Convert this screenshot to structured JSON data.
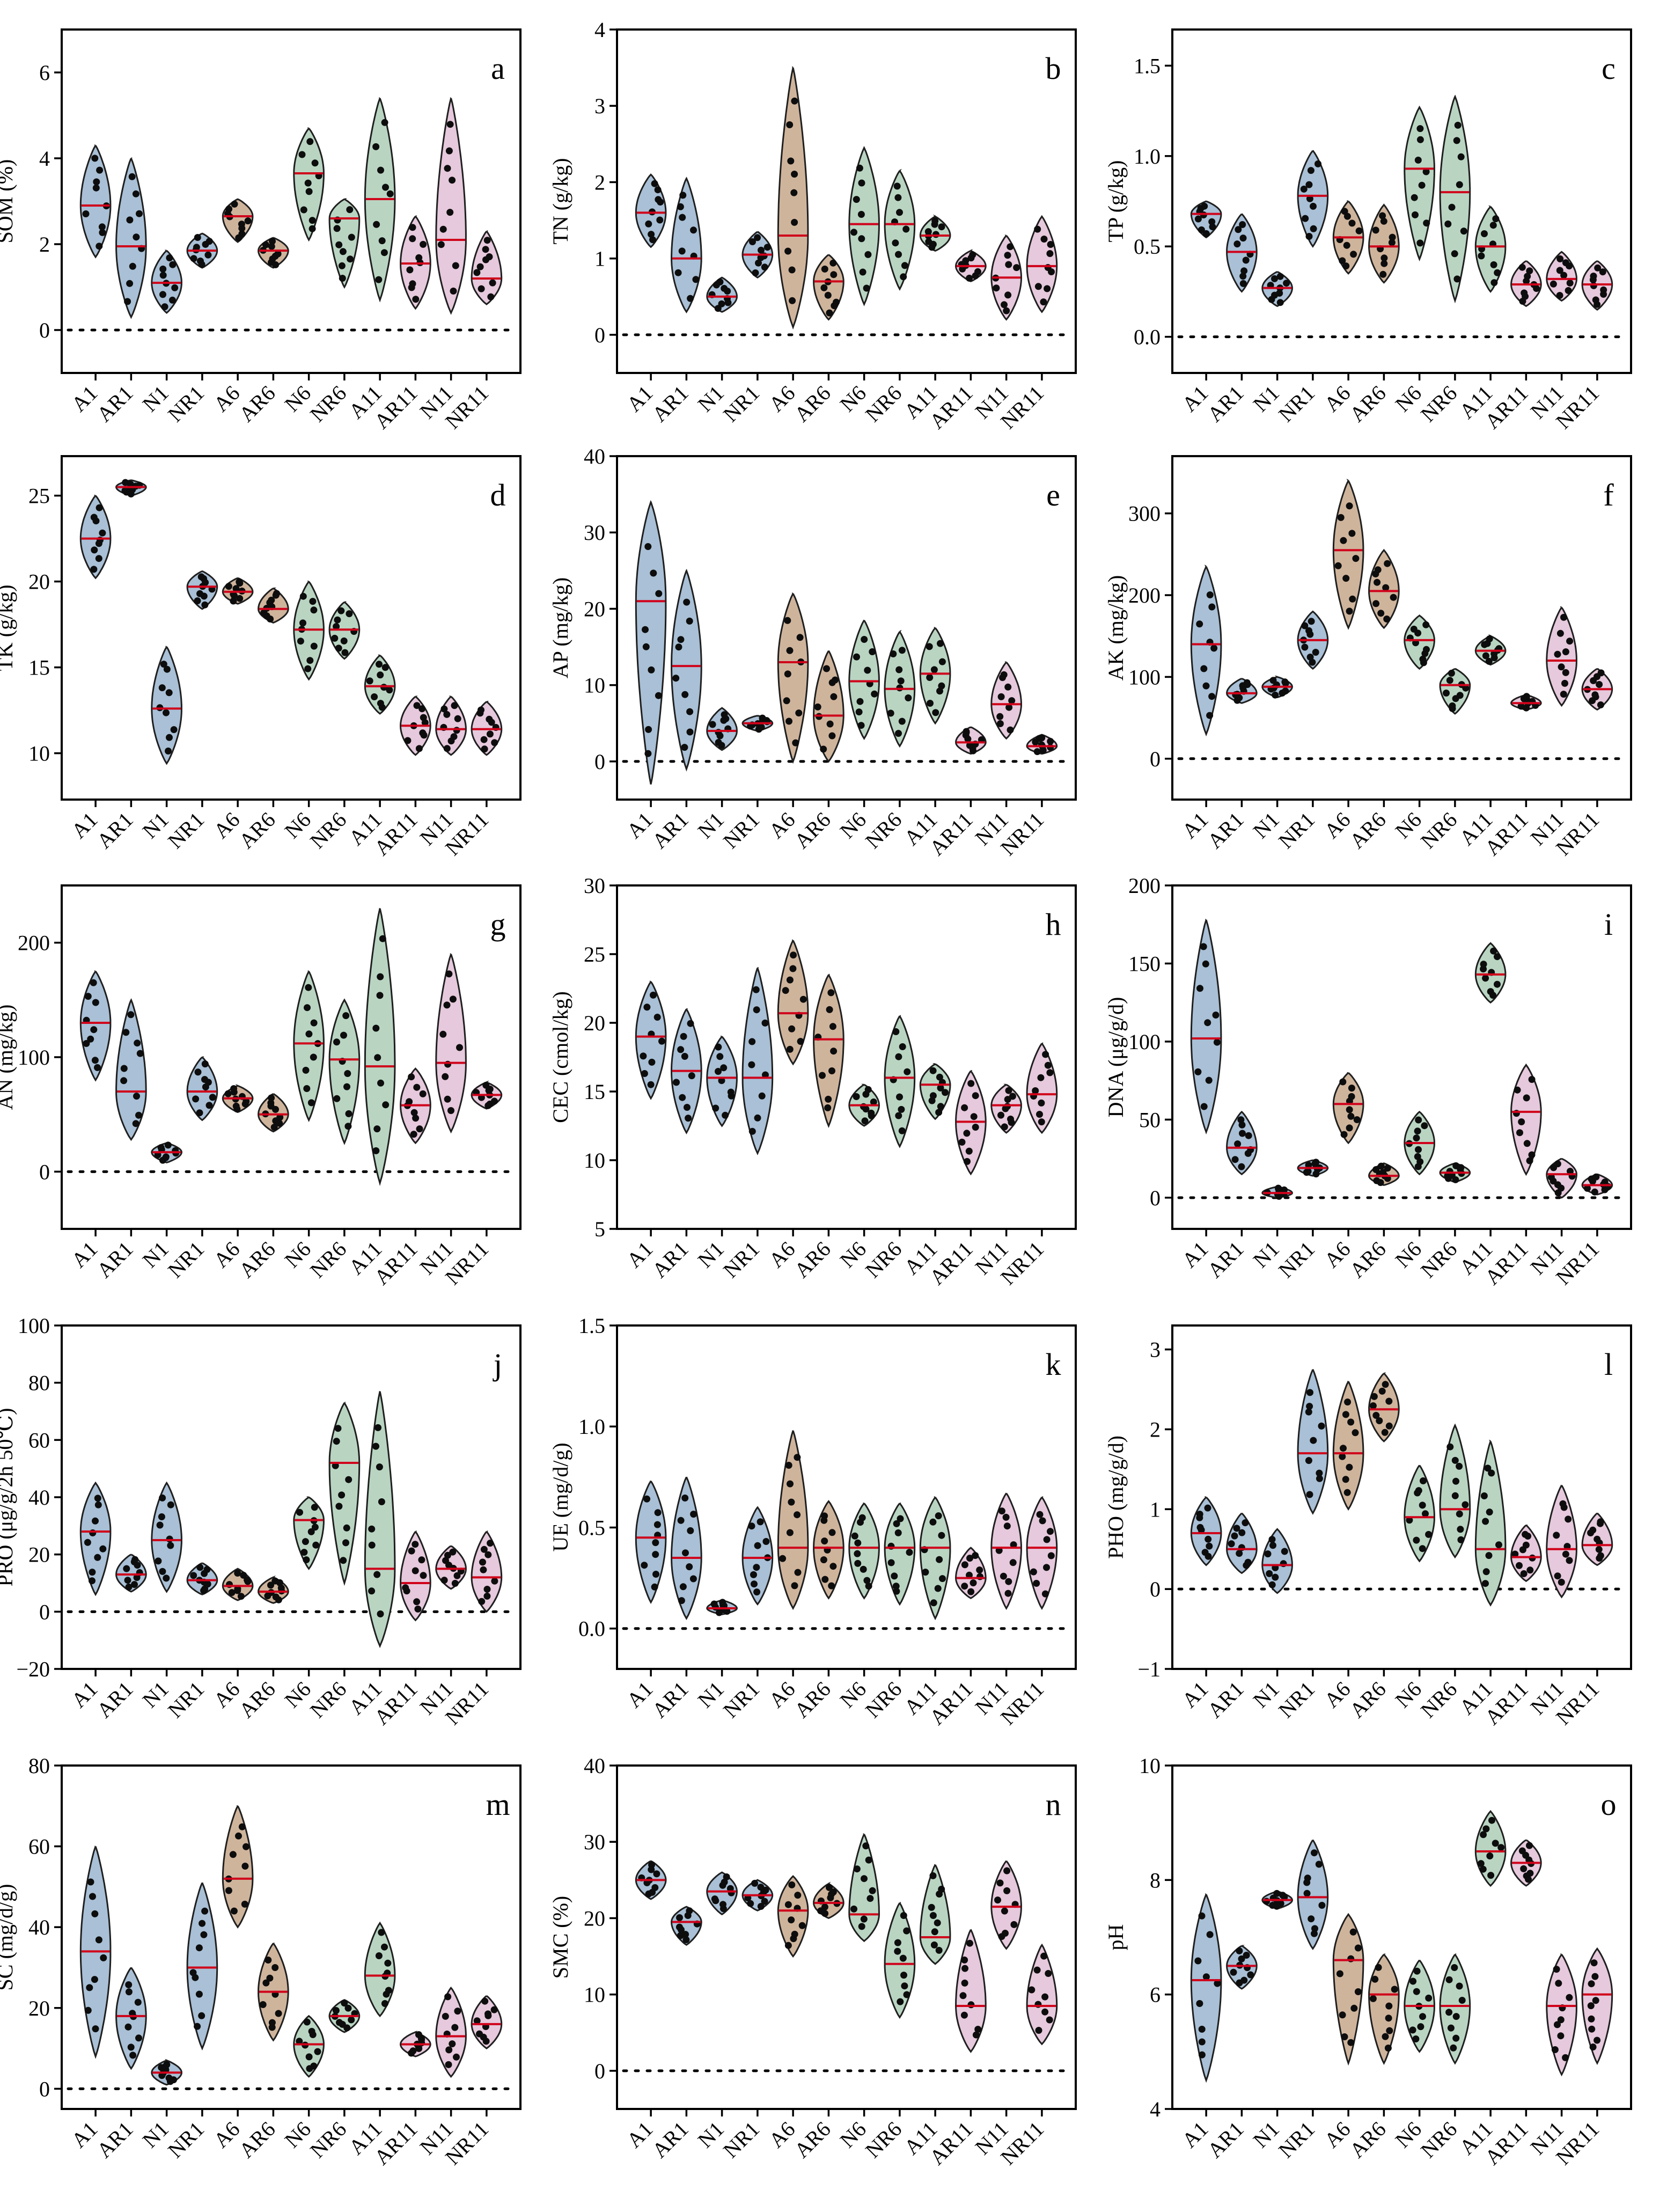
{
  "colors": {
    "A": "#a9c0d6",
    "N": "#b9d5c2",
    "X": "#cfb49c",
    "P": "#e6c9dc",
    "median": "#d0021b",
    "dot": "#0d0d0d"
  },
  "chart_data": [
    {
      "panel": "a",
      "type": "violin",
      "ylabel": "SOM (%)",
      "ylim": [
        -1,
        7
      ],
      "yticks": [
        0,
        2,
        4,
        6
      ],
      "categories": [
        "A1",
        "AR1",
        "N1",
        "NR1",
        "A6",
        "AR6",
        "N6",
        "NR6",
        "A11",
        "AR11",
        "N11",
        "NR11"
      ],
      "fill_groups": [
        "A",
        "A",
        "A",
        "A",
        "X",
        "X",
        "N",
        "N",
        "N",
        "P",
        "P",
        "P"
      ],
      "medians": [
        2.9,
        1.95,
        1.1,
        1.85,
        2.65,
        1.85,
        3.65,
        2.6,
        3.05,
        1.55,
        2.1,
        1.2
      ],
      "mins": [
        1.7,
        0.3,
        0.4,
        1.45,
        2.05,
        1.45,
        2.1,
        1.0,
        0.7,
        0.5,
        0.4,
        0.6
      ],
      "maxs": [
        4.3,
        4.0,
        1.85,
        2.25,
        3.05,
        2.15,
        4.7,
        3.05,
        5.4,
        2.65,
        5.4,
        2.3
      ]
    },
    {
      "panel": "b",
      "type": "violin",
      "ylabel": "TN (g/kg)",
      "ylim": [
        -0.5,
        4
      ],
      "yticks": [
        0,
        1,
        2,
        3,
        4
      ],
      "categories": [
        "A1",
        "AR1",
        "N1",
        "NR1",
        "A6",
        "AR6",
        "N6",
        "NR6",
        "A11",
        "AR11",
        "N11",
        "NR11"
      ],
      "fill_groups": [
        "A",
        "A",
        "A",
        "A",
        "X",
        "X",
        "N",
        "N",
        "N",
        "P",
        "P",
        "P"
      ],
      "medians": [
        1.6,
        1.0,
        0.5,
        1.05,
        1.3,
        0.7,
        1.45,
        1.45,
        1.3,
        0.9,
        0.75,
        0.9
      ],
      "mins": [
        1.15,
        0.3,
        0.3,
        0.75,
        0.1,
        0.2,
        0.4,
        0.6,
        1.1,
        0.7,
        0.2,
        0.3
      ],
      "maxs": [
        2.1,
        2.05,
        0.75,
        1.35,
        3.5,
        1.05,
        2.45,
        2.15,
        1.55,
        1.1,
        1.3,
        1.55
      ]
    },
    {
      "panel": "c",
      "type": "violin",
      "ylabel": "TP (g/kg)",
      "ylim": [
        -0.2,
        1.7
      ],
      "yticks": [
        0.0,
        0.5,
        1.0,
        1.5
      ],
      "categories": [
        "A1",
        "AR1",
        "N1",
        "NR1",
        "A6",
        "AR6",
        "N6",
        "NR6",
        "A11",
        "AR11",
        "N11",
        "NR11"
      ],
      "fill_groups": [
        "A",
        "A",
        "A",
        "A",
        "X",
        "X",
        "N",
        "N",
        "N",
        "P",
        "P",
        "P"
      ],
      "medians": [
        0.68,
        0.47,
        0.27,
        0.78,
        0.55,
        0.5,
        0.93,
        0.8,
        0.5,
        0.29,
        0.32,
        0.29
      ],
      "mins": [
        0.55,
        0.25,
        0.17,
        0.5,
        0.35,
        0.3,
        0.43,
        0.2,
        0.25,
        0.17,
        0.2,
        0.15
      ],
      "maxs": [
        0.75,
        0.68,
        0.36,
        1.03,
        0.75,
        0.73,
        1.27,
        1.33,
        0.72,
        0.42,
        0.47,
        0.42
      ]
    },
    {
      "panel": "d",
      "type": "violin",
      "ylabel": "TK (g/kg)",
      "ylim": [
        7.3,
        27.3
      ],
      "yticks": [
        10,
        15,
        20,
        25
      ],
      "categories": [
        "A1",
        "AR1",
        "N1",
        "NR1",
        "A6",
        "AR6",
        "N6",
        "NR6",
        "A11",
        "AR11",
        "N11",
        "NR11"
      ],
      "fill_groups": [
        "A",
        "A",
        "A",
        "A",
        "X",
        "X",
        "N",
        "N",
        "N",
        "P",
        "P",
        "P"
      ],
      "medians": [
        22.5,
        25.5,
        12.6,
        19.7,
        19.4,
        18.4,
        17.2,
        17.2,
        13.9,
        11.6,
        11.4,
        11.4
      ],
      "mins": [
        20.2,
        25.0,
        9.4,
        18.4,
        18.7,
        17.6,
        14.3,
        15.5,
        12.3,
        9.9,
        9.9,
        9.9
      ],
      "maxs": [
        25.0,
        25.9,
        16.2,
        20.6,
        20.2,
        19.6,
        20.0,
        18.8,
        15.7,
        13.3,
        13.3,
        13.0
      ]
    },
    {
      "panel": "e",
      "type": "violin",
      "ylabel": "AP (mg/kg)",
      "ylim": [
        -5,
        40
      ],
      "yticks": [
        0,
        10,
        20,
        30,
        40
      ],
      "categories": [
        "A1",
        "AR1",
        "N1",
        "NR1",
        "A6",
        "AR6",
        "N6",
        "NR6",
        "A11",
        "AR11",
        "N11",
        "NR11"
      ],
      "fill_groups": [
        "A",
        "A",
        "A",
        "A",
        "X",
        "X",
        "N",
        "N",
        "N",
        "P",
        "P",
        "P"
      ],
      "medians": [
        21.0,
        12.5,
        4.0,
        5.0,
        13.0,
        6.0,
        10.5,
        9.5,
        11.5,
        2.5,
        7.5,
        2.0
      ],
      "mins": [
        -3.0,
        -1.0,
        1.5,
        4.0,
        0.0,
        0.0,
        3.0,
        2.0,
        5.0,
        1.0,
        3.0,
        1.0
      ],
      "maxs": [
        34.0,
        25.0,
        7.0,
        6.0,
        22.0,
        14.5,
        18.5,
        17.0,
        17.5,
        4.5,
        13.0,
        3.5
      ]
    },
    {
      "panel": "f",
      "type": "violin",
      "ylabel": "AK (mg/kg)",
      "ylim": [
        -50,
        370
      ],
      "yticks": [
        0,
        100,
        200,
        300
      ],
      "categories": [
        "A1",
        "AR1",
        "N1",
        "NR1",
        "A6",
        "AR6",
        "N6",
        "NR6",
        "A11",
        "AR11",
        "N11",
        "NR11"
      ],
      "fill_groups": [
        "A",
        "A",
        "A",
        "A",
        "X",
        "X",
        "N",
        "N",
        "N",
        "P",
        "P",
        "P"
      ],
      "medians": [
        140,
        80,
        88,
        145,
        255,
        205,
        145,
        90,
        132,
        68,
        120,
        85
      ],
      "mins": [
        30,
        68,
        75,
        110,
        160,
        160,
        110,
        55,
        115,
        60,
        65,
        60
      ],
      "maxs": [
        235,
        98,
        100,
        180,
        340,
        255,
        175,
        110,
        150,
        78,
        185,
        110
      ]
    },
    {
      "panel": "g",
      "type": "violin",
      "ylabel": "AN (mg/kg)",
      "ylim": [
        -50,
        250
      ],
      "yticks": [
        0,
        100,
        200
      ],
      "categories": [
        "A1",
        "AR1",
        "N1",
        "NR1",
        "A6",
        "AR6",
        "N6",
        "NR6",
        "A11",
        "AR11",
        "N11",
        "NR11"
      ],
      "fill_groups": [
        "A",
        "A",
        "A",
        "A",
        "X",
        "X",
        "N",
        "N",
        "N",
        "P",
        "P",
        "P"
      ],
      "medians": [
        130,
        70,
        17,
        70,
        64,
        50,
        112,
        98,
        92,
        58,
        95,
        67
      ],
      "mins": [
        80,
        28,
        8,
        45,
        52,
        35,
        45,
        25,
        -10,
        25,
        35,
        55
      ],
      "maxs": [
        175,
        150,
        25,
        100,
        75,
        68,
        175,
        150,
        230,
        90,
        190,
        78
      ]
    },
    {
      "panel": "h",
      "type": "violin",
      "ylabel": "CEC (cmol/kg)",
      "ylim": [
        5,
        30
      ],
      "yticks": [
        5,
        10,
        15,
        20,
        25,
        30
      ],
      "categories": [
        "A1",
        "AR1",
        "N1",
        "NR1",
        "A6",
        "AR6",
        "N6",
        "NR6",
        "A11",
        "AR11",
        "N11",
        "NR11"
      ],
      "fill_groups": [
        "A",
        "A",
        "A",
        "A",
        "X",
        "X",
        "N",
        "N",
        "N",
        "P",
        "P",
        "P"
      ],
      "medians": [
        19.0,
        16.5,
        16.0,
        16.0,
        20.7,
        18.8,
        14.0,
        16.0,
        15.5,
        12.8,
        14.0,
        14.8
      ],
      "mins": [
        14.5,
        12.0,
        12.5,
        10.5,
        17.0,
        12.5,
        12.5,
        11.0,
        13.0,
        9.0,
        12.0,
        12.0
      ],
      "maxs": [
        23.0,
        21.0,
        19.0,
        24.0,
        26.0,
        23.5,
        15.5,
        20.5,
        17.0,
        16.5,
        15.5,
        18.5
      ]
    },
    {
      "panel": "i",
      "type": "violin",
      "ylabel": "DNA (μg/g/d)",
      "ylim": [
        -20,
        200
      ],
      "yticks": [
        0,
        50,
        100,
        150,
        200
      ],
      "categories": [
        "A1",
        "AR1",
        "N1",
        "NR1",
        "A6",
        "AR6",
        "N6",
        "NR6",
        "A11",
        "AR11",
        "N11",
        "NR11"
      ],
      "fill_groups": [
        "A",
        "A",
        "A",
        "A",
        "X",
        "X",
        "N",
        "N",
        "N",
        "P",
        "P",
        "P"
      ],
      "medians": [
        102,
        32,
        3,
        19,
        60,
        14,
        35,
        16,
        143,
        55,
        15,
        8
      ],
      "mins": [
        42,
        15,
        0,
        14,
        35,
        8,
        15,
        10,
        125,
        15,
        0,
        2
      ],
      "maxs": [
        178,
        55,
        7,
        24,
        80,
        22,
        55,
        22,
        163,
        85,
        25,
        15
      ]
    },
    {
      "panel": "j",
      "type": "violin",
      "ylabel": "PRO (μg/g/2h 50℃)",
      "ylim": [
        -20,
        100
      ],
      "yticks": [
        -20,
        0,
        20,
        40,
        60,
        80,
        100
      ],
      "categories": [
        "A1",
        "AR1",
        "N1",
        "NR1",
        "A6",
        "AR6",
        "N6",
        "NR6",
        "A11",
        "AR11",
        "N11",
        "NR11"
      ],
      "fill_groups": [
        "A",
        "A",
        "A",
        "A",
        "X",
        "X",
        "N",
        "N",
        "N",
        "P",
        "P",
        "P"
      ],
      "medians": [
        28,
        13,
        25,
        11,
        9,
        7,
        32,
        52,
        15,
        10,
        15,
        12
      ],
      "mins": [
        6,
        7,
        7,
        6,
        4,
        3,
        15,
        10,
        -12,
        -3,
        8,
        0
      ],
      "maxs": [
        45,
        20,
        45,
        17,
        15,
        12,
        40,
        73,
        77,
        28,
        23,
        28
      ]
    },
    {
      "panel": "k",
      "type": "violin",
      "ylabel": "UE (mg/d/g)",
      "ylim": [
        -0.2,
        1.5
      ],
      "yticks": [
        0.0,
        0.5,
        1.0,
        1.5
      ],
      "categories": [
        "A1",
        "AR1",
        "N1",
        "NR1",
        "A6",
        "AR6",
        "N6",
        "NR6",
        "A11",
        "AR11",
        "N11",
        "NR11"
      ],
      "fill_groups": [
        "A",
        "A",
        "A",
        "A",
        "X",
        "X",
        "N",
        "N",
        "N",
        "P",
        "P",
        "P"
      ],
      "medians": [
        0.45,
        0.35,
        0.1,
        0.35,
        0.4,
        0.4,
        0.4,
        0.4,
        0.4,
        0.25,
        0.4,
        0.4
      ],
      "mins": [
        0.13,
        0.05,
        0.07,
        0.12,
        0.1,
        0.15,
        0.15,
        0.12,
        0.05,
        0.15,
        0.1,
        0.1
      ],
      "maxs": [
        0.73,
        0.75,
        0.14,
        0.6,
        0.98,
        0.63,
        0.62,
        0.62,
        0.65,
        0.4,
        0.67,
        0.65
      ]
    },
    {
      "panel": "l",
      "type": "violin",
      "ylabel": "PHO (mg/g/d)",
      "ylim": [
        -1,
        3.3
      ],
      "yticks": [
        -1,
        0,
        1,
        2,
        3
      ],
      "categories": [
        "A1",
        "AR1",
        "N1",
        "NR1",
        "A6",
        "AR6",
        "N6",
        "NR6",
        "A11",
        "AR11",
        "N11",
        "NR11"
      ],
      "fill_groups": [
        "A",
        "A",
        "A",
        "A",
        "X",
        "X",
        "N",
        "N",
        "N",
        "P",
        "P",
        "P"
      ],
      "medians": [
        0.7,
        0.5,
        0.3,
        1.7,
        1.7,
        2.25,
        0.9,
        1.0,
        0.5,
        0.4,
        0.5,
        0.55
      ],
      "mins": [
        0.3,
        0.2,
        -0.05,
        0.95,
        1.0,
        1.85,
        0.35,
        0.4,
        -0.2,
        0.1,
        -0.1,
        0.3
      ],
      "maxs": [
        1.15,
        0.95,
        0.75,
        2.75,
        2.6,
        2.7,
        1.55,
        2.05,
        1.85,
        0.8,
        1.3,
        0.95
      ]
    },
    {
      "panel": "m",
      "type": "violin",
      "ylabel": "SC (mg/d/g)",
      "ylim": [
        -5,
        80
      ],
      "yticks": [
        0,
        20,
        40,
        60,
        80
      ],
      "categories": [
        "A1",
        "AR1",
        "N1",
        "NR1",
        "A6",
        "AR6",
        "N6",
        "NR6",
        "A11",
        "AR11",
        "N11",
        "NR11"
      ],
      "fill_groups": [
        "A",
        "A",
        "A",
        "A",
        "X",
        "X",
        "N",
        "N",
        "N",
        "P",
        "P",
        "P"
      ],
      "medians": [
        34,
        18,
        4,
        30,
        52,
        24,
        11,
        18,
        28,
        11,
        13,
        16
      ],
      "mins": [
        8,
        5,
        1,
        10,
        40,
        12,
        3,
        14,
        18,
        8,
        3,
        10
      ],
      "maxs": [
        60,
        30,
        7,
        51,
        70,
        36,
        18,
        22,
        41,
        14,
        25,
        23
      ]
    },
    {
      "panel": "n",
      "type": "violin",
      "ylabel": "SMC (%)",
      "ylim": [
        -5,
        40
      ],
      "yticks": [
        0,
        10,
        20,
        30,
        40
      ],
      "categories": [
        "A1",
        "AR1",
        "N1",
        "NR1",
        "A6",
        "AR6",
        "N6",
        "NR6",
        "A11",
        "AR11",
        "N11",
        "NR11"
      ],
      "fill_groups": [
        "A",
        "A",
        "A",
        "A",
        "X",
        "X",
        "N",
        "N",
        "N",
        "P",
        "P",
        "P"
      ],
      "medians": [
        25,
        19.5,
        23.5,
        23,
        21,
        22,
        20.5,
        14,
        17.5,
        8.5,
        21.5,
        8.5
      ],
      "mins": [
        22.5,
        16.5,
        20.5,
        21,
        15,
        20,
        17,
        7,
        14,
        2.5,
        16,
        3.5
      ],
      "maxs": [
        27.5,
        21.5,
        26,
        25,
        25.5,
        24.5,
        31,
        22,
        27,
        18.5,
        27.5,
        16.5
      ]
    },
    {
      "panel": "o",
      "type": "violin",
      "ylabel": "pH",
      "ylim": [
        4,
        10
      ],
      "yticks": [
        4,
        6,
        8,
        10
      ],
      "categories": [
        "A1",
        "AR1",
        "N1",
        "NR1",
        "A6",
        "AR6",
        "N6",
        "NR6",
        "A11",
        "AR11",
        "N11",
        "NR11"
      ],
      "fill_groups": [
        "A",
        "A",
        "A",
        "A",
        "X",
        "X",
        "N",
        "N",
        "N",
        "P",
        "P",
        "P"
      ],
      "medians": [
        6.25,
        6.5,
        7.65,
        7.7,
        6.6,
        6.0,
        5.8,
        5.8,
        8.5,
        8.3,
        5.8,
        6.0
      ],
      "mins": [
        4.5,
        6.1,
        7.5,
        6.8,
        4.8,
        4.8,
        5.0,
        4.8,
        7.9,
        7.9,
        4.6,
        4.8
      ],
      "maxs": [
        7.75,
        6.85,
        7.8,
        8.7,
        7.4,
        6.7,
        6.6,
        6.7,
        9.2,
        8.7,
        6.7,
        6.8
      ]
    }
  ]
}
